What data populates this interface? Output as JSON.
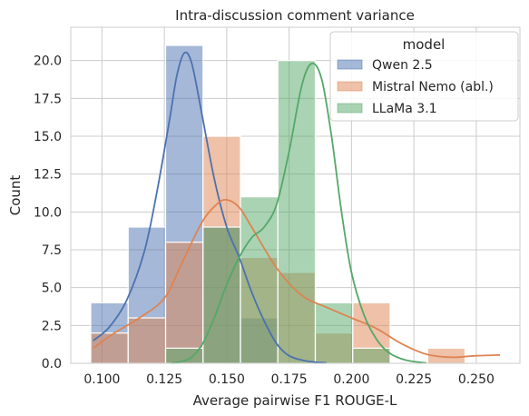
{
  "chart_data": {
    "type": "histogram",
    "title": "Intra-discussion comment variance",
    "xlabel": "Average pairwise F1 ROUGE-L",
    "ylabel": "Count",
    "xlim": [
      0.0875,
      0.2675
    ],
    "ylim": [
      0,
      22.2
    ],
    "x_ticks": [
      0.1,
      0.125,
      0.15,
      0.175,
      0.2,
      0.225,
      0.25
    ],
    "x_tick_labels": [
      "0.100",
      "0.125",
      "0.150",
      "0.175",
      "0.200",
      "0.225",
      "0.250"
    ],
    "y_ticks": [
      0.0,
      2.5,
      5.0,
      7.5,
      10.0,
      12.5,
      15.0,
      17.5,
      20.0
    ],
    "y_tick_labels": [
      "0.0",
      "2.5",
      "5.0",
      "7.5",
      "10.0",
      "12.5",
      "15.0",
      "17.5",
      "20.0"
    ],
    "grid": true,
    "bin_edges": [
      0.0955,
      0.1105,
      0.1255,
      0.1405,
      0.1555,
      0.1705,
      0.1855,
      0.2005,
      0.2155,
      0.2305,
      0.2455,
      0.2605
    ],
    "legend": {
      "title": "model",
      "placement": "top-right"
    },
    "series": [
      {
        "name": "Qwen 2.5",
        "color": "#4c72b0",
        "counts": [
          4,
          9,
          21,
          9,
          3,
          0,
          0,
          0,
          0,
          0,
          0
        ],
        "kde": [
          [
            0.0965,
            1.5
          ],
          [
            0.103,
            2.4
          ],
          [
            0.11,
            4.2
          ],
          [
            0.117,
            7.4
          ],
          [
            0.122,
            11.3
          ],
          [
            0.127,
            16.0
          ],
          [
            0.13,
            19.0
          ],
          [
            0.133,
            20.5
          ],
          [
            0.136,
            19.8
          ],
          [
            0.14,
            16.5
          ],
          [
            0.145,
            12.2
          ],
          [
            0.15,
            9.0
          ],
          [
            0.155,
            7.0
          ],
          [
            0.16,
            4.7
          ],
          [
            0.165,
            2.8
          ],
          [
            0.17,
            1.3
          ],
          [
            0.175,
            0.5
          ],
          [
            0.182,
            0.15
          ],
          [
            0.19,
            0.03
          ]
        ]
      },
      {
        "name": "Mistral Nemo (abl.)",
        "color": "#dd8452",
        "counts": [
          2,
          3,
          8,
          15,
          7,
          6,
          2,
          4,
          0,
          1,
          0
        ],
        "kde": [
          [
            0.0965,
            1.0
          ],
          [
            0.105,
            2.0
          ],
          [
            0.115,
            3.0
          ],
          [
            0.125,
            4.3
          ],
          [
            0.132,
            6.6
          ],
          [
            0.14,
            9.3
          ],
          [
            0.146,
            10.5
          ],
          [
            0.15,
            10.8
          ],
          [
            0.155,
            10.3
          ],
          [
            0.16,
            9.0
          ],
          [
            0.17,
            6.3
          ],
          [
            0.18,
            4.5
          ],
          [
            0.19,
            3.7
          ],
          [
            0.2,
            3.0
          ],
          [
            0.21,
            2.3
          ],
          [
            0.22,
            1.3
          ],
          [
            0.23,
            0.6
          ],
          [
            0.24,
            0.4
          ],
          [
            0.25,
            0.5
          ],
          [
            0.2595,
            0.55
          ]
        ]
      },
      {
        "name": "LLaMa 3.1",
        "color": "#55a868",
        "counts": [
          0,
          0,
          1,
          9,
          11,
          20,
          4,
          1,
          0,
          0,
          0
        ],
        "kde": [
          [
            0.128,
            0.0
          ],
          [
            0.135,
            0.3
          ],
          [
            0.14,
            1.2
          ],
          [
            0.145,
            3.0
          ],
          [
            0.15,
            5.2
          ],
          [
            0.155,
            7.0
          ],
          [
            0.16,
            8.3
          ],
          [
            0.165,
            9.0
          ],
          [
            0.17,
            10.5
          ],
          [
            0.175,
            14.0
          ],
          [
            0.18,
            18.3
          ],
          [
            0.184,
            19.8
          ],
          [
            0.188,
            18.8
          ],
          [
            0.192,
            15.0
          ],
          [
            0.196,
            10.0
          ],
          [
            0.2,
            6.0
          ],
          [
            0.205,
            3.2
          ],
          [
            0.21,
            1.6
          ],
          [
            0.215,
            0.7
          ],
          [
            0.222,
            0.2
          ],
          [
            0.23,
            0.03
          ]
        ]
      }
    ]
  }
}
